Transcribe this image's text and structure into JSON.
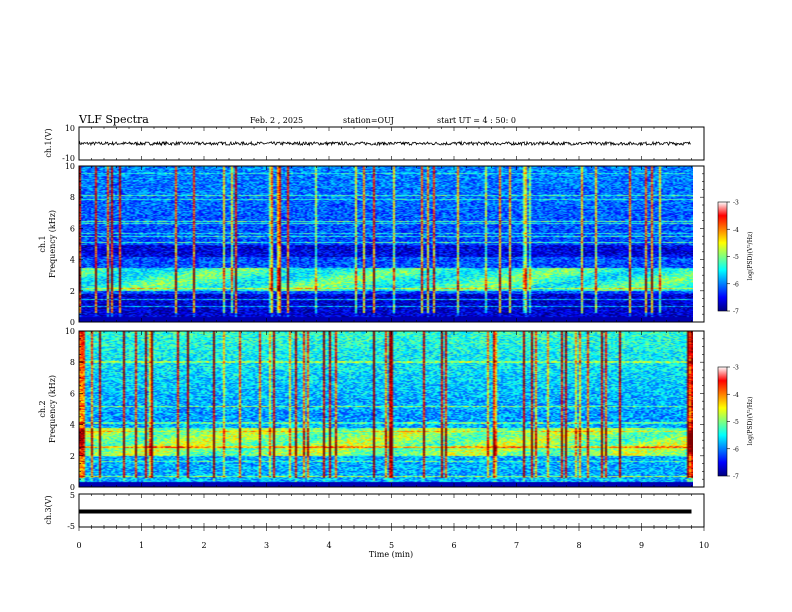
{
  "header": {
    "title": "VLF Spectra",
    "date": "Feb. 2 , 2025",
    "station": "station=OUJ",
    "start_time": "start UT =  4 : 50: 0"
  },
  "chart_data": [
    {
      "type": "line",
      "panel": "ch1-waveform",
      "ylabel": "ch.1(V)",
      "ylim": [
        -10,
        10
      ],
      "y_ticks": [
        "10",
        "-10"
      ],
      "x": [
        0,
        9.8
      ],
      "baseline_value": 0,
      "noise_amplitude": 1.0,
      "trace_color": "#000000"
    },
    {
      "type": "heatmap",
      "panel": "ch1-spectrogram",
      "ylabel_line1": "ch.1",
      "ylabel_line2": "Frequency (kHz)",
      "ylim": [
        0,
        10
      ],
      "y_ticks": [
        "0",
        "2",
        "4",
        "6",
        "8",
        "10"
      ],
      "x_range_min": [
        0,
        9.8
      ],
      "emission_band_khz": [
        2.0,
        3.5
      ],
      "quiet_band_khz": [
        0.3,
        1.8
      ],
      "colorbar": {
        "label": "log(PSD)(V²/Hz)",
        "ticks": [
          "-3",
          "-4",
          "-5",
          "-6",
          "-7"
        ],
        "range": [
          -7,
          -3
        ]
      }
    },
    {
      "type": "heatmap",
      "panel": "ch2-spectrogram",
      "ylabel_line1": "ch.2",
      "ylabel_line2": "Frequency (kHz)",
      "ylim": [
        0,
        10
      ],
      "y_ticks": [
        "0",
        "2",
        "4",
        "6",
        "8",
        "10"
      ],
      "x_range_min": [
        0,
        9.8
      ],
      "emission_band_khz": [
        2.0,
        3.8
      ],
      "colorbar": {
        "label": "log(PSD)(V²/Hz)",
        "ticks": [
          "-3",
          "-4",
          "-5",
          "-6",
          "-7"
        ],
        "range": [
          -7,
          -3
        ]
      }
    },
    {
      "type": "line",
      "panel": "ch3-waveform",
      "ylabel": "ch.3(V)",
      "ylim": [
        -5,
        5
      ],
      "y_ticks": [
        "5",
        "-5"
      ],
      "x": [
        0,
        9.8
      ],
      "values": [
        -0.3,
        -0.3
      ],
      "trace_color": "#000000"
    }
  ],
  "x_axis": {
    "label": "Time (min)",
    "ticks": [
      "0",
      "1",
      "2",
      "3",
      "4",
      "5",
      "6",
      "7",
      "8",
      "9",
      "10"
    ],
    "range": [
      0,
      10
    ]
  }
}
